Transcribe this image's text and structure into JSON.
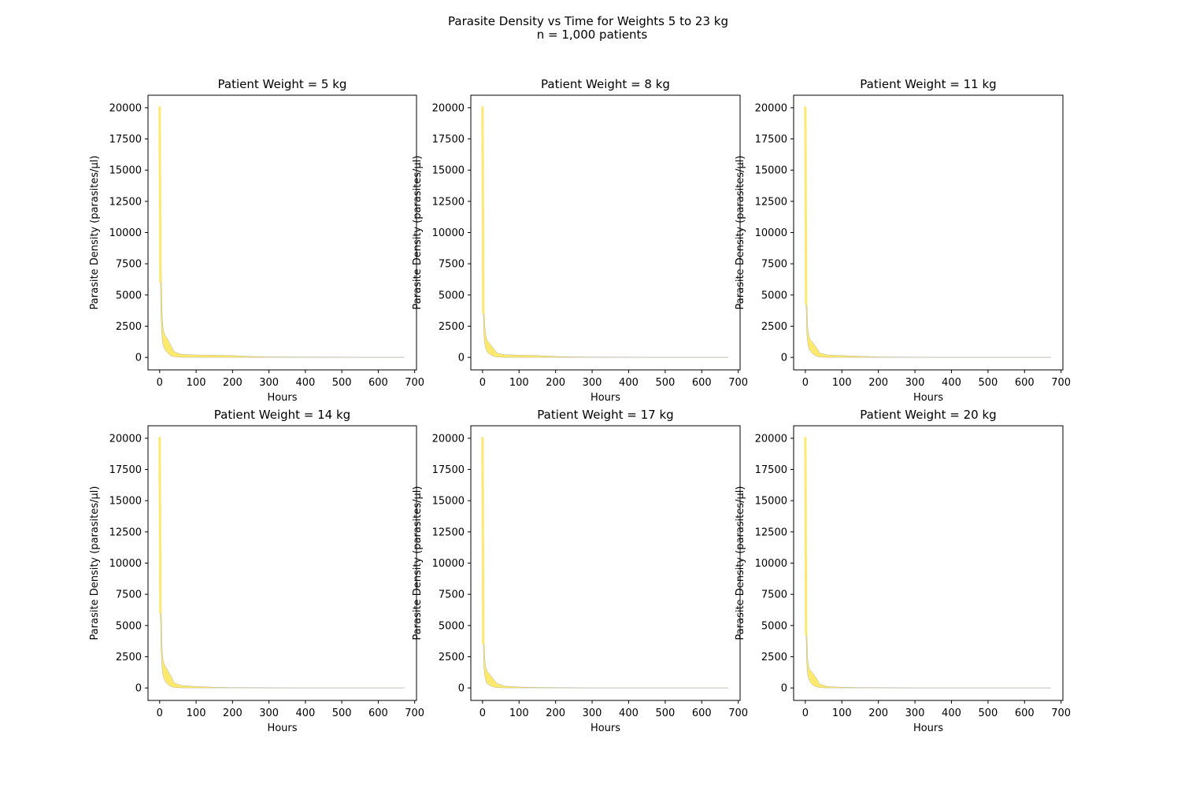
{
  "figure": {
    "title_line1": "Parasite Density vs Time for Weights 5 to 23 kg",
    "title_line2": "n = 1,000 patients"
  },
  "colors": {
    "fill": "#fde96e",
    "edge": "#6b6b6b",
    "axes": "#000000",
    "background": "#ffffff"
  },
  "chart_data": [
    {
      "type": "area",
      "title": "Patient Weight = 5 kg",
      "xlabel": "Hours",
      "ylabel": "Parasite Density (parasites/µl)",
      "xlim": [
        -32,
        705
      ],
      "ylim": [
        -1000,
        21000
      ],
      "xticks": [
        0,
        100,
        200,
        300,
        400,
        500,
        600,
        700
      ],
      "yticks": [
        0,
        2500,
        5000,
        7500,
        10000,
        12500,
        15000,
        17500,
        20000
      ],
      "grid": false,
      "x": [
        0,
        2,
        4,
        6,
        8,
        10,
        14,
        20,
        30,
        40,
        60,
        100,
        150,
        200,
        250,
        300,
        400,
        500,
        600,
        672
      ],
      "upper": [
        20100,
        16000,
        8000,
        4000,
        2800,
        2200,
        1800,
        1550,
        1000,
        450,
        250,
        200,
        180,
        150,
        80,
        40,
        20,
        15,
        10,
        10
      ],
      "lower": [
        19800,
        6000,
        3000,
        1800,
        1200,
        900,
        650,
        400,
        150,
        50,
        10,
        5,
        2,
        0,
        0,
        0,
        0,
        0,
        0,
        0
      ]
    },
    {
      "type": "area",
      "title": "Patient Weight = 8 kg",
      "xlabel": "Hours",
      "ylabel": "Parasite Density (parasites/µl)",
      "xlim": [
        -32,
        705
      ],
      "ylim": [
        -1000,
        21000
      ],
      "xticks": [
        0,
        100,
        200,
        300,
        400,
        500,
        600,
        700
      ],
      "yticks": [
        0,
        2500,
        5000,
        7500,
        10000,
        12500,
        15000,
        17500,
        20000
      ],
      "grid": false,
      "x": [
        0,
        2,
        4,
        6,
        8,
        10,
        14,
        20,
        30,
        40,
        60,
        100,
        150,
        200,
        250,
        300,
        400,
        500,
        600,
        672
      ],
      "upper": [
        20100,
        9200,
        4000,
        2600,
        2000,
        1600,
        1300,
        1100,
        700,
        350,
        220,
        180,
        150,
        80,
        40,
        20,
        15,
        10,
        10,
        10
      ],
      "lower": [
        8000,
        3500,
        1700,
        1100,
        800,
        600,
        400,
        250,
        100,
        30,
        5,
        2,
        0,
        0,
        0,
        0,
        0,
        0,
        0,
        0
      ]
    },
    {
      "type": "area",
      "title": "Patient Weight = 11 kg",
      "xlabel": "Hours",
      "ylabel": "Parasite Density (parasites/µl)",
      "xlim": [
        -32,
        705
      ],
      "ylim": [
        -1000,
        21000
      ],
      "xticks": [
        0,
        100,
        200,
        300,
        400,
        500,
        600,
        700
      ],
      "yticks": [
        0,
        2500,
        5000,
        7500,
        10000,
        12500,
        15000,
        17500,
        20000
      ],
      "grid": false,
      "x": [
        0,
        2,
        4,
        6,
        8,
        10,
        14,
        20,
        30,
        40,
        60,
        100,
        150,
        200,
        250,
        300,
        400,
        500,
        600,
        672
      ],
      "upper": [
        20100,
        13200,
        4800,
        2600,
        2000,
        1700,
        1400,
        1200,
        800,
        350,
        200,
        150,
        90,
        40,
        20,
        15,
        10,
        10,
        10,
        10
      ],
      "lower": [
        11000,
        4200,
        2000,
        1300,
        900,
        700,
        500,
        300,
        100,
        30,
        5,
        2,
        0,
        0,
        0,
        0,
        0,
        0,
        0,
        0
      ]
    },
    {
      "type": "area",
      "title": "Patient Weight = 14 kg",
      "xlabel": "Hours",
      "ylabel": "Parasite Density (parasites/µl)",
      "xlim": [
        -32,
        705
      ],
      "ylim": [
        -1000,
        21000
      ],
      "xticks": [
        0,
        100,
        200,
        300,
        400,
        500,
        600,
        700
      ],
      "yticks": [
        0,
        2500,
        5000,
        7500,
        10000,
        12500,
        15000,
        17500,
        20000
      ],
      "grid": false,
      "x": [
        0,
        2,
        4,
        6,
        8,
        10,
        14,
        20,
        30,
        40,
        60,
        100,
        150,
        200,
        250,
        300,
        400,
        500,
        600,
        672
      ],
      "upper": [
        20100,
        14000,
        7000,
        3600,
        2600,
        2100,
        1800,
        1500,
        1000,
        400,
        200,
        120,
        60,
        30,
        20,
        15,
        10,
        10,
        10,
        10
      ],
      "lower": [
        19800,
        6000,
        3000,
        1800,
        1200,
        900,
        600,
        350,
        120,
        40,
        5,
        2,
        0,
        0,
        0,
        0,
        0,
        0,
        0,
        0
      ]
    },
    {
      "type": "area",
      "title": "Patient Weight = 17 kg",
      "xlabel": "Hours",
      "ylabel": "Parasite Density (parasites/µl)",
      "xlim": [
        -32,
        705
      ],
      "ylim": [
        -1000,
        21000
      ],
      "xticks": [
        0,
        100,
        200,
        300,
        400,
        500,
        600,
        700
      ],
      "yticks": [
        0,
        2500,
        5000,
        7500,
        10000,
        12500,
        15000,
        17500,
        20000
      ],
      "grid": false,
      "x": [
        0,
        2,
        4,
        6,
        8,
        10,
        14,
        20,
        30,
        40,
        60,
        100,
        150,
        200,
        250,
        300,
        400,
        500,
        600,
        672
      ],
      "upper": [
        20100,
        9200,
        4000,
        2400,
        1800,
        1500,
        1300,
        1100,
        700,
        350,
        150,
        80,
        40,
        20,
        15,
        10,
        10,
        10,
        10,
        10
      ],
      "lower": [
        8000,
        3500,
        1600,
        1000,
        700,
        500,
        350,
        200,
        80,
        20,
        5,
        2,
        0,
        0,
        0,
        0,
        0,
        0,
        0,
        0
      ]
    },
    {
      "type": "area",
      "title": "Patient Weight = 20 kg",
      "xlabel": "Hours",
      "ylabel": "Parasite Density (parasites/µl)",
      "xlim": [
        -32,
        705
      ],
      "ylim": [
        -1000,
        21000
      ],
      "xticks": [
        0,
        100,
        200,
        300,
        400,
        500,
        600,
        700
      ],
      "yticks": [
        0,
        2500,
        5000,
        7500,
        10000,
        12500,
        15000,
        17500,
        20000
      ],
      "grid": false,
      "x": [
        0,
        2,
        4,
        6,
        8,
        10,
        14,
        20,
        30,
        40,
        60,
        100,
        150,
        200,
        250,
        300,
        400,
        500,
        600,
        672
      ],
      "upper": [
        20100,
        13200,
        4800,
        2500,
        1900,
        1600,
        1400,
        1200,
        800,
        300,
        120,
        60,
        30,
        20,
        15,
        10,
        10,
        10,
        10,
        10
      ],
      "lower": [
        11000,
        4200,
        2000,
        1200,
        850,
        650,
        450,
        250,
        90,
        20,
        5,
        2,
        0,
        0,
        0,
        0,
        0,
        0,
        0,
        0
      ]
    }
  ]
}
